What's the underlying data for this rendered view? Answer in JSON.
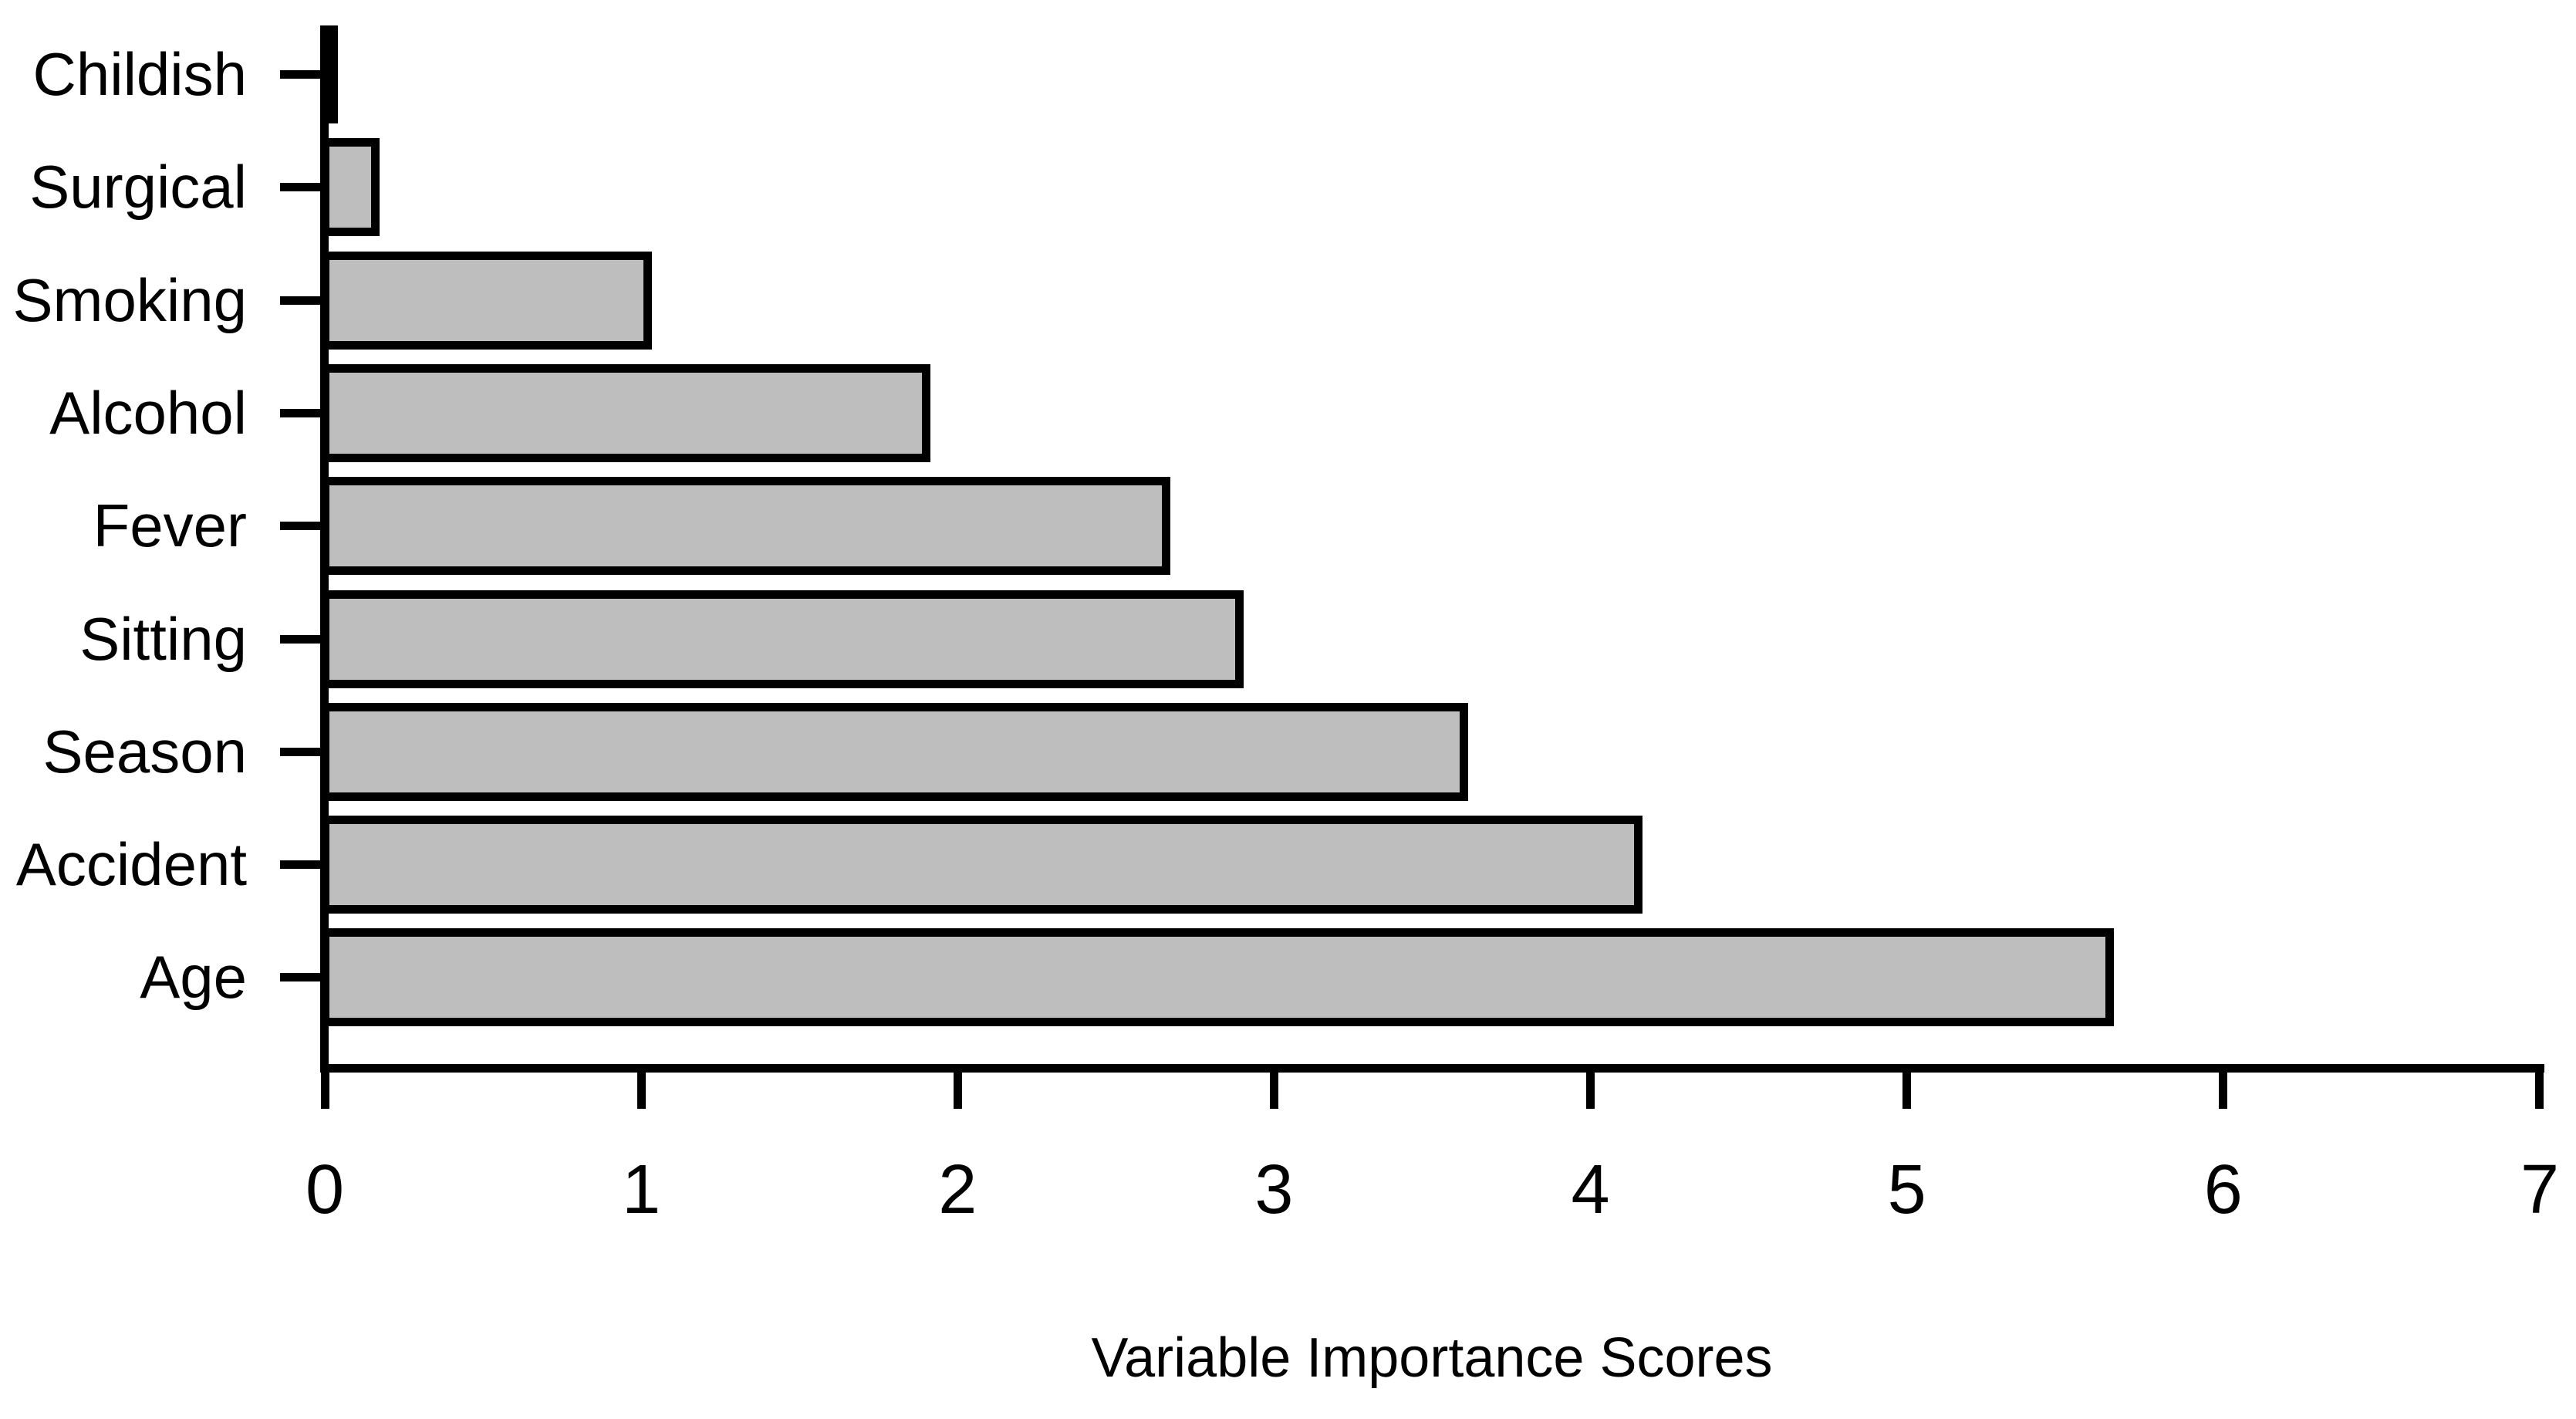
{
  "chart_data": {
    "type": "bar",
    "orientation": "horizontal",
    "title": "",
    "xlabel": "Variable Importance Scores",
    "ylabel": "",
    "categories_top_to_bottom": [
      "Childish",
      "Surgical",
      "Smoking",
      "Alcohol",
      "Fever",
      "Sitting",
      "Season",
      "Accident",
      "Age"
    ],
    "values_top_to_bottom": [
      0.02,
      0.16,
      1.02,
      1.9,
      2.66,
      2.89,
      3.6,
      4.15,
      5.64
    ],
    "series": [
      {
        "name": "Variable importance",
        "points": [
          {
            "category": "Age",
            "value": 5.64
          },
          {
            "category": "Accident",
            "value": 4.15
          },
          {
            "category": "Season",
            "value": 3.6
          },
          {
            "category": "Sitting",
            "value": 2.89
          },
          {
            "category": "Fever",
            "value": 2.66
          },
          {
            "category": "Alcohol",
            "value": 1.9
          },
          {
            "category": "Smoking",
            "value": 1.02
          },
          {
            "category": "Surgical",
            "value": 0.16
          },
          {
            "category": "Childish",
            "value": 0.02
          }
        ]
      }
    ],
    "xlim": [
      0,
      7
    ],
    "xticks": [
      0,
      1,
      2,
      3,
      4,
      5,
      6,
      7
    ],
    "grid": false,
    "legend": "none",
    "colors": {
      "bar_fill": "#BEBEBE",
      "bar_border": "#000000",
      "axis": "#000000",
      "text": "#000000",
      "background": "#FFFFFF"
    }
  }
}
